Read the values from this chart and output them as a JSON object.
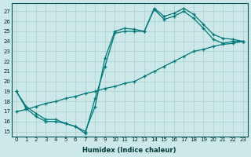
{
  "xlabel": "Humidex (Indice chaleur)",
  "ylabel": "",
  "background_color": "#cce8e8",
  "grid_color": "#aacece",
  "line_color": "#007878",
  "xlim": [
    -0.5,
    23.5
  ],
  "ylim": [
    14.5,
    27.8
  ],
  "yticks": [
    15,
    16,
    17,
    18,
    19,
    20,
    21,
    22,
    23,
    24,
    25,
    26,
    27
  ],
  "xticks": [
    0,
    1,
    2,
    3,
    4,
    5,
    6,
    7,
    8,
    9,
    10,
    11,
    12,
    13,
    14,
    15,
    16,
    17,
    18,
    19,
    20,
    21,
    22,
    23
  ],
  "lines": [
    {
      "x": [
        0,
        1,
        2,
        3,
        4,
        5,
        6,
        7,
        8,
        9,
        10,
        11,
        12,
        13,
        14,
        15,
        16,
        17,
        18,
        19,
        20,
        21,
        22,
        23
      ],
      "y": [
        19,
        17.5,
        16.8,
        16.2,
        16.2,
        15.8,
        15.5,
        15.0,
        17.5,
        22.3,
        25.0,
        25.3,
        25.2,
        25.0,
        27.3,
        26.5,
        26.8,
        27.3,
        26.7,
        25.7,
        24.7,
        24.3,
        24.2,
        24.0
      ]
    },
    {
      "x": [
        0,
        1,
        2,
        3,
        4,
        5,
        6,
        7,
        8,
        9,
        10,
        11,
        12,
        13,
        14,
        15,
        16,
        17,
        18,
        19,
        20,
        21,
        22,
        23
      ],
      "y": [
        17.0,
        17.2,
        17.5,
        17.8,
        18.0,
        18.3,
        18.5,
        18.8,
        19.0,
        19.3,
        19.5,
        19.8,
        20.0,
        20.5,
        21.0,
        21.5,
        22.0,
        22.5,
        23.0,
        23.2,
        23.5,
        23.7,
        23.8,
        24.0
      ]
    },
    {
      "x": [
        0,
        1,
        2,
        3,
        4,
        5,
        6,
        7,
        8,
        9,
        10,
        11,
        12,
        13,
        14,
        15,
        16,
        17,
        18,
        19,
        20,
        21,
        22,
        23
      ],
      "y": [
        19.0,
        17.3,
        16.5,
        16.0,
        16.0,
        15.8,
        15.5,
        14.8,
        18.3,
        21.5,
        24.8,
        25.0,
        25.0,
        25.0,
        27.2,
        26.2,
        26.5,
        27.0,
        26.3,
        25.3,
        24.2,
        23.8,
        24.0,
        24.0
      ]
    }
  ]
}
